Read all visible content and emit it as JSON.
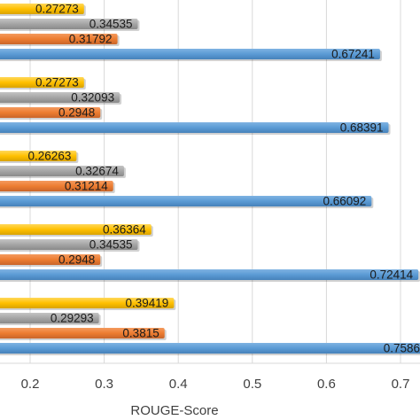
{
  "chart_data": {
    "type": "bar",
    "orientation": "horizontal",
    "xlabel": "ROUGE-Score",
    "ylabel": "",
    "xlim": [
      0.13,
      0.91
    ],
    "x_ticks": [
      "0.2",
      "0.3",
      "0.4",
      "0.5",
      "0.6",
      "0.7"
    ],
    "grid": true,
    "colors": [
      "#FFC000",
      "#A5A5A5",
      "#ED7D31",
      "#5B9BD5"
    ],
    "series": [
      {
        "color": "#FFC000",
        "values": [
          0.27273,
          0.27273,
          0.26263,
          0.36364,
          0.39419
        ]
      },
      {
        "color": "#A5A5A5",
        "values": [
          0.34535,
          0.32093,
          0.32674,
          0.34535,
          0.29293
        ]
      },
      {
        "color": "#ED7D31",
        "values": [
          0.31792,
          0.2948,
          0.31214,
          0.2948,
          0.3815
        ]
      },
      {
        "color": "#5B9BD5",
        "values": [
          0.67241,
          0.68391,
          0.66092,
          0.72414,
          0.7586
        ]
      }
    ],
    "data_labels": [
      [
        "0.27273",
        "0.27273",
        "0.26263",
        "0.36364",
        "0.39419"
      ],
      [
        "0.34535",
        "0.32093",
        "0.32674",
        "0.34535",
        "0.29293"
      ],
      [
        "0.31792",
        "0.2948",
        "0.31214",
        "0.2948",
        "0.3815"
      ],
      [
        "0.67241",
        "0.68391",
        "0.66092",
        "0.72414",
        "0.7586"
      ]
    ]
  }
}
